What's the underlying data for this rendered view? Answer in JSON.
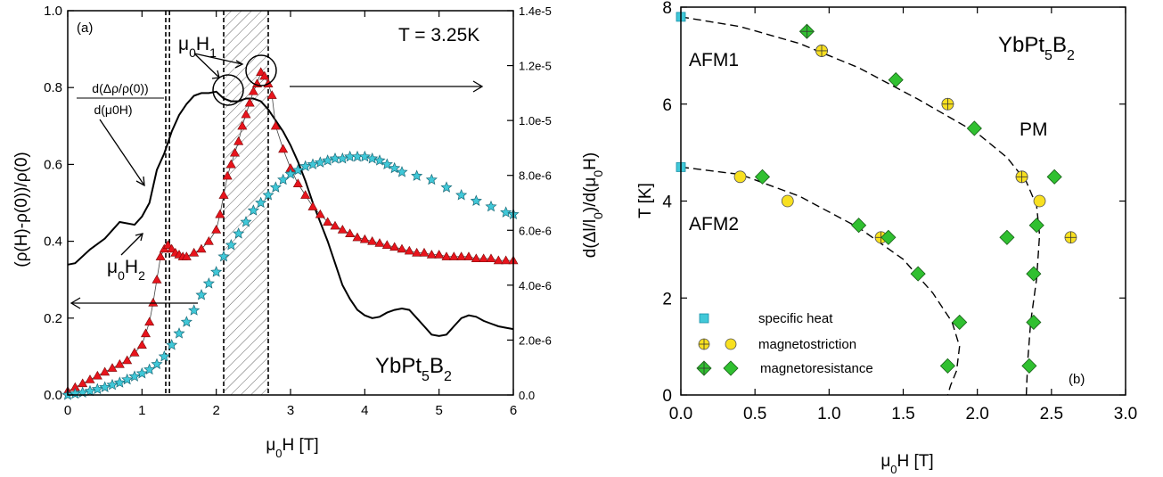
{
  "chart_data": [
    {
      "type": "line",
      "panel_label": "(a)",
      "temperature_label": "T = 3.25K",
      "compound": {
        "base": "YbPt",
        "sub1": "5",
        "mid": "B",
        "sub2": "2"
      },
      "xlabel": {
        "prefix": "μ",
        "sub": "0",
        "suffix": "H [T]"
      },
      "ylabel": "(ρ(H)-ρ(0))/ρ(0)",
      "y2label": {
        "text1": "d(Δl/l",
        "sub1": "0",
        "text2": ")/d(μ",
        "sub2": "0",
        "text3": "H)"
      },
      "xlim": [
        0,
        6
      ],
      "ylim": [
        0,
        1.0
      ],
      "y2lim": [
        0,
        1.4e-05
      ],
      "xticks": [
        "0",
        "1",
        "2",
        "3",
        "4",
        "5",
        "6"
      ],
      "yticks": [
        "0.0",
        "0.2",
        "0.4",
        "0.6",
        "0.8",
        "1.0"
      ],
      "y2ticks": [
        "0.0",
        "2.0e-6",
        "4.0e-6",
        "6.0e-6",
        "8.0e-6",
        "1.0e-5",
        "1.2e-5",
        "1.4e-5"
      ],
      "annotations": {
        "h1": {
          "prefix": "μ",
          "sub": "0",
          "suffix": "H",
          "sub2": "1"
        },
        "h2": {
          "prefix": "μ",
          "sub": "0",
          "suffix": "H",
          "sub2": "2"
        },
        "derivative_num": "d(Δρ/ρ(0))",
        "derivative_den": "d(μ0H)"
      },
      "vertical_lines": [
        1.32,
        1.37,
        2.1,
        2.7
      ],
      "hatched_region": [
        2.1,
        2.7
      ],
      "series": [
        {
          "marker": "line",
          "axis": "right",
          "x": [
            0,
            0.1,
            0.3,
            0.5,
            0.7,
            0.9,
            1.0,
            1.1,
            1.2,
            1.3,
            1.4,
            1.5,
            1.6,
            1.7,
            1.8,
            1.9,
            2.0,
            2.1,
            2.2,
            2.3,
            2.4,
            2.5,
            2.6,
            2.7,
            2.8,
            2.9,
            3.0,
            3.1,
            3.2,
            3.3,
            3.4,
            3.5,
            3.6,
            3.7,
            3.8,
            3.9,
            4.0,
            4.1,
            4.2,
            4.3,
            4.4,
            4.5,
            4.6,
            4.7,
            4.8,
            4.9,
            5.0,
            5.1,
            5.2,
            5.3,
            5.4,
            5.5,
            5.6,
            5.7,
            5.8,
            5.9,
            6.0
          ],
          "y": [
            4.75e-06,
            4.8e-06,
            5.3e-06,
            5.7e-06,
            6.3e-06,
            6.2e-06,
            6.5e-06,
            7e-06,
            8.2e-06,
            8.8e-06,
            9.6e-06,
            1.02e-05,
            1.06e-05,
            1.09e-05,
            1.1e-05,
            1.1e-05,
            1.105e-05,
            1.08e-05,
            1.07e-05,
            1.07e-05,
            1.08e-05,
            1.08e-05,
            1.07e-05,
            1.04e-05,
            1e-05,
            9.6e-06,
            9.1e-06,
            8.5e-06,
            7.8e-06,
            7e-06,
            6.3e-06,
            5.6e-06,
            4.8e-06,
            4e-06,
            3.5e-06,
            3.1e-06,
            2.9e-06,
            2.8e-06,
            2.85e-06,
            3e-06,
            3.1e-06,
            3.15e-06,
            3.1e-06,
            2.8e-06,
            2.5e-06,
            2.2e-06,
            2.15e-06,
            2.2e-06,
            2.5e-06,
            2.8e-06,
            2.9e-06,
            2.85e-06,
            2.7e-06,
            2.6e-06,
            2.5e-06,
            2.45e-06,
            2.4e-06
          ]
        },
        {
          "marker": "triangle",
          "axis": "left",
          "color": "#e8141c",
          "x": [
            0,
            0.1,
            0.2,
            0.3,
            0.4,
            0.5,
            0.6,
            0.7,
            0.8,
            0.9,
            1.0,
            1.05,
            1.1,
            1.15,
            1.2,
            1.25,
            1.3,
            1.35,
            1.4,
            1.45,
            1.5,
            1.55,
            1.6,
            1.7,
            1.8,
            1.9,
            2.0,
            2.05,
            2.1,
            2.15,
            2.2,
            2.25,
            2.3,
            2.35,
            2.4,
            2.45,
            2.5,
            2.55,
            2.6,
            2.65,
            2.7,
            2.75,
            2.8,
            2.9,
            3.0,
            3.1,
            3.2,
            3.3,
            3.4,
            3.5,
            3.6,
            3.7,
            3.8,
            3.9,
            4.0,
            4.1,
            4.2,
            4.3,
            4.4,
            4.5,
            4.6,
            4.7,
            4.8,
            4.9,
            5.0,
            5.1,
            5.2,
            5.3,
            5.4,
            5.5,
            5.6,
            5.7,
            5.8,
            5.9,
            6.0
          ],
          "y": [
            0.01,
            0.02,
            0.03,
            0.04,
            0.05,
            0.06,
            0.07,
            0.08,
            0.09,
            0.11,
            0.13,
            0.16,
            0.19,
            0.24,
            0.3,
            0.36,
            0.38,
            0.39,
            0.38,
            0.37,
            0.365,
            0.36,
            0.36,
            0.37,
            0.38,
            0.4,
            0.43,
            0.47,
            0.52,
            0.57,
            0.6,
            0.63,
            0.66,
            0.7,
            0.73,
            0.76,
            0.79,
            0.81,
            0.84,
            0.83,
            0.81,
            0.78,
            0.7,
            0.64,
            0.59,
            0.55,
            0.52,
            0.49,
            0.47,
            0.45,
            0.44,
            0.43,
            0.42,
            0.41,
            0.405,
            0.4,
            0.395,
            0.39,
            0.385,
            0.38,
            0.375,
            0.37,
            0.37,
            0.365,
            0.365,
            0.36,
            0.36,
            0.36,
            0.36,
            0.355,
            0.355,
            0.355,
            0.35,
            0.35,
            0.35
          ]
        },
        {
          "marker": "star",
          "axis": "left",
          "color": "#40c8d8",
          "x": [
            0,
            0.1,
            0.2,
            0.3,
            0.4,
            0.5,
            0.6,
            0.7,
            0.8,
            0.9,
            1.0,
            1.1,
            1.2,
            1.3,
            1.4,
            1.5,
            1.6,
            1.7,
            1.8,
            1.9,
            2.0,
            2.1,
            2.2,
            2.3,
            2.4,
            2.5,
            2.6,
            2.7,
            2.8,
            2.9,
            3.0,
            3.1,
            3.2,
            3.3,
            3.4,
            3.5,
            3.6,
            3.7,
            3.8,
            3.9,
            4.0,
            4.1,
            4.2,
            4.3,
            4.4,
            4.5,
            4.7,
            4.9,
            5.1,
            5.3,
            5.5,
            5.7,
            5.9,
            6.0
          ],
          "y": [
            0.0,
            0.003,
            0.006,
            0.01,
            0.015,
            0.02,
            0.026,
            0.032,
            0.04,
            0.048,
            0.056,
            0.066,
            0.08,
            0.1,
            0.13,
            0.16,
            0.19,
            0.22,
            0.26,
            0.29,
            0.32,
            0.36,
            0.39,
            0.42,
            0.45,
            0.48,
            0.5,
            0.52,
            0.54,
            0.56,
            0.575,
            0.585,
            0.595,
            0.6,
            0.605,
            0.61,
            0.615,
            0.615,
            0.62,
            0.62,
            0.62,
            0.615,
            0.61,
            0.6,
            0.59,
            0.58,
            0.57,
            0.56,
            0.54,
            0.52,
            0.505,
            0.49,
            0.475,
            0.47
          ]
        }
      ]
    },
    {
      "type": "scatter",
      "panel_label": "(b)",
      "compound": {
        "base": "YbPt",
        "sub1": "5",
        "mid": "B",
        "sub2": "2"
      },
      "xlabel": {
        "prefix": "μ",
        "sub": "0",
        "suffix": "H [T]"
      },
      "ylabel": "T [K]",
      "xlim": [
        0,
        3.0
      ],
      "ylim": [
        0,
        8
      ],
      "xticks": [
        "0.0",
        "0.5",
        "1.0",
        "1.5",
        "2.0",
        "2.5",
        "3.0"
      ],
      "yticks": [
        "0",
        "2",
        "4",
        "6",
        "8"
      ],
      "phase_labels": [
        "AFM1",
        "AFM2",
        "PM"
      ],
      "legend": [
        "specific heat",
        "magnetostriction",
        "magnetoresistance"
      ],
      "series": [
        {
          "marker": "square",
          "color": "#40c8d8",
          "x": [
            0.0,
            0.0
          ],
          "y": [
            7.8,
            4.7
          ]
        },
        {
          "marker": "circle",
          "color": "#f8e020",
          "x": [
            0.95,
            1.8,
            2.3,
            0.72,
            2.42,
            0.4
          ],
          "y": [
            7.1,
            6.0,
            4.5,
            4.0,
            4.0,
            4.5
          ]
        },
        {
          "marker": "circle-plus",
          "color": "#f8e020",
          "x": [
            0.95,
            1.8,
            2.3,
            1.35,
            2.63
          ],
          "y": [
            7.1,
            6.0,
            4.5,
            3.25,
            3.25
          ]
        },
        {
          "marker": "diamond",
          "color": "#30c030",
          "x": [
            1.45,
            1.98,
            2.52,
            0.55,
            1.2,
            1.4,
            1.6,
            1.88,
            1.8,
            2.2,
            2.4,
            2.38,
            2.38,
            2.35
          ],
          "y": [
            6.5,
            5.5,
            4.5,
            4.5,
            3.5,
            3.25,
            2.5,
            1.5,
            0.6,
            3.25,
            3.5,
            2.5,
            1.5,
            0.6
          ]
        },
        {
          "marker": "diamond-plus",
          "color": "#30c030",
          "x": [
            0.85
          ],
          "y": [
            7.5
          ]
        }
      ],
      "phase_boundaries": [
        {
          "x": [
            0.0,
            0.4,
            0.8,
            1.2,
            1.6,
            2.0,
            2.2,
            2.33,
            2.4,
            2.42,
            2.4,
            2.36,
            2.34,
            2.33
          ],
          "y": [
            7.8,
            7.6,
            7.25,
            6.75,
            6.1,
            5.4,
            4.9,
            4.4,
            3.9,
            3.3,
            2.4,
            1.5,
            0.7,
            0.0
          ]
        },
        {
          "x": [
            0.0,
            0.4,
            0.8,
            1.2,
            1.5,
            1.7,
            1.83,
            1.88,
            1.86,
            1.82,
            1.8
          ],
          "y": [
            4.7,
            4.55,
            4.1,
            3.45,
            2.8,
            2.1,
            1.5,
            1.0,
            0.5,
            0.2,
            0.0
          ]
        }
      ]
    }
  ]
}
